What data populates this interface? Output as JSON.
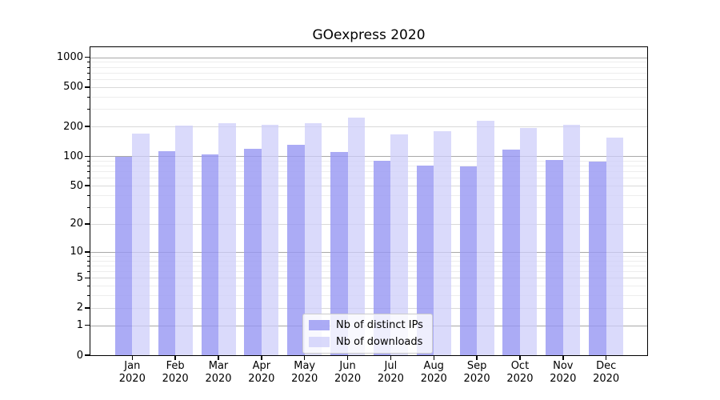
{
  "chart_data": {
    "type": "bar",
    "title": "GOexpress 2020",
    "categories": [
      "Jan",
      "Feb",
      "Mar",
      "Apr",
      "May",
      "Jun",
      "Jul",
      "Aug",
      "Sep",
      "Oct",
      "Nov",
      "Dec"
    ],
    "category_year": "2020",
    "series": [
      {
        "name": "Nb of distinct IPs",
        "color": "rgba(150,150,242,0.8)",
        "values": [
          99,
          113,
          105,
          118,
          130,
          110,
          90,
          80,
          79,
          116,
          92,
          88
        ]
      },
      {
        "name": "Nb of downloads",
        "color": "rgba(206,206,250,0.75)",
        "values": [
          171,
          203,
          215,
          210,
          218,
          246,
          167,
          179,
          230,
          193,
          210,
          156
        ]
      }
    ],
    "yscale": "log1p",
    "yticks": [
      0,
      1,
      2,
      5,
      10,
      20,
      50,
      100,
      200,
      500,
      1000
    ],
    "yticks_minor": [
      3,
      4,
      6,
      7,
      8,
      9,
      30,
      40,
      60,
      70,
      80,
      90,
      300,
      400,
      600,
      700,
      800,
      900
    ],
    "ylim": [
      0,
      1300
    ],
    "grid": "horizontal",
    "legend_position": "lower center"
  },
  "colors": {
    "decade_gridline": "#a8a8a8",
    "labeled_gridline": "#d9d9d9",
    "minor_gridline": "#ededed",
    "axis": "#000000",
    "legend_border": "#cccccc",
    "legend_background": "rgba(255,255,255,0.8)"
  }
}
